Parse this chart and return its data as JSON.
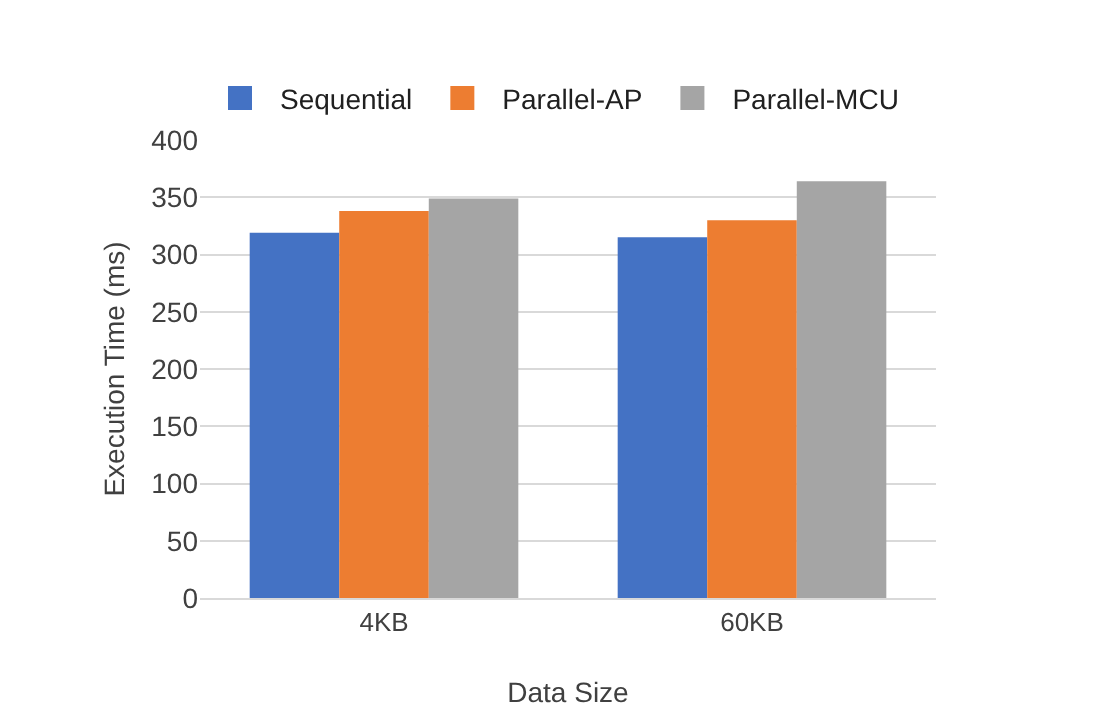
{
  "chart_data": {
    "type": "bar",
    "xlabel": "Data Size",
    "ylabel": "Execution Time (ms)",
    "categories": [
      "4KB",
      "60KB"
    ],
    "series": [
      {
        "name": "Sequential",
        "color": "#4472c4",
        "values": [
          319,
          315
        ]
      },
      {
        "name": "Parallel-AP",
        "color": "#ed7d31",
        "values": [
          338,
          330
        ]
      },
      {
        "name": "Parallel-MCU",
        "color": "#a5a5a5",
        "values": [
          349,
          364
        ]
      }
    ],
    "ylim": [
      0,
      400
    ],
    "yticks": [
      0,
      50,
      100,
      150,
      200,
      250,
      300,
      350,
      400
    ],
    "grid": "y",
    "legend": "top"
  }
}
